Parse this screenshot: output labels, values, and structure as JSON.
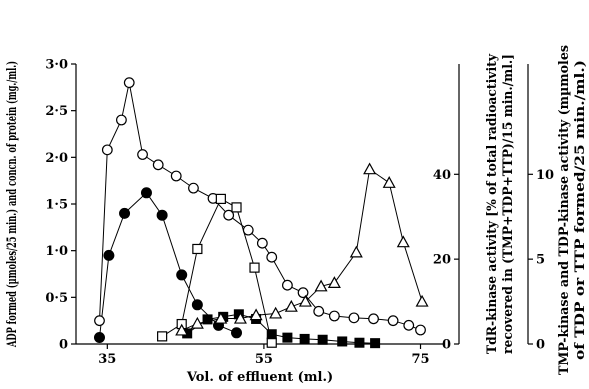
{
  "chart_data": {
    "type": "line",
    "xlabel": "Vol. of effluent (ml.)",
    "ylabel_left": "ADP formed (µmoles/25 min.) and concn. of protein (mg./ml.)",
    "ylabel_right_inner_line1": "TdR-kinase activity [% of total radioactivity",
    "ylabel_right_inner_line2": "recovered in (TMP+TDP+TTP)/15 min./ml.]",
    "ylabel_right_outer_line1": "TMP-kinase and TDP-kinase activity (mµmoles",
    "ylabel_right_outer_line2": "of TDP or TTP formed/25 min./ml.)",
    "x_ticks": [
      "35",
      "55",
      "75"
    ],
    "x_tick_values": [
      35,
      55,
      75
    ],
    "xlim": [
      31,
      78
    ],
    "y_left_ticks": [
      "0",
      "0·5",
      "1·0",
      "1·5",
      "2·0",
      "2·5",
      "3·0"
    ],
    "y_left_tick_values": [
      0,
      0.5,
      1.0,
      1.5,
      2.0,
      2.5,
      3.0
    ],
    "y_left_lim": [
      0,
      3.0
    ],
    "y_right_inner_ticks": [
      "0",
      "20",
      "40"
    ],
    "y_right_inner_tick_values": [
      0,
      20,
      40
    ],
    "y_right_inner_lim": [
      0,
      66
    ],
    "y_right_outer_ticks": [
      "0",
      "5",
      "10"
    ],
    "y_right_outer_tick_values": [
      0,
      5,
      10
    ],
    "y_right_outer_lim": [
      0,
      16.5
    ],
    "series": [
      {
        "marker": "open-circle",
        "axis": "left",
        "x": [
          34,
          35,
          36.8,
          37.8,
          39.5,
          41.5,
          43.8,
          46,
          48.5,
          50.5,
          53,
          54.8,
          56,
          58,
          60,
          62,
          64,
          66.5,
          69,
          71.5,
          73.5,
          75
        ],
        "y": [
          0.25,
          2.08,
          2.4,
          2.8,
          2.03,
          1.92,
          1.8,
          1.67,
          1.56,
          1.38,
          1.22,
          1.08,
          0.93,
          0.63,
          0.55,
          0.35,
          0.3,
          0.28,
          0.27,
          0.25,
          0.2,
          0.15
        ]
      },
      {
        "marker": "filled-circle",
        "axis": "left",
        "x": [
          34,
          35.2,
          37.2,
          40,
          42,
          44.5,
          46.5,
          49.2,
          51.5
        ],
        "y": [
          0.07,
          0.95,
          1.4,
          1.62,
          1.38,
          0.74,
          0.42,
          0.2,
          0.12
        ]
      },
      {
        "marker": "open-square",
        "axis": "right-inner",
        "x": [
          42,
          44.5,
          46.5,
          49.5,
          51.5,
          53.8,
          56
        ],
        "y": [
          1.8,
          4.7,
          22.4,
          34.2,
          32.2,
          18,
          0.3
        ]
      },
      {
        "marker": "filled-square",
        "axis": "right-inner",
        "x": [
          45.2,
          47.8,
          49.8,
          51.8,
          54,
          56,
          58,
          60.2,
          62.5,
          65,
          67.2,
          69.2
        ],
        "y": [
          2.5,
          5.8,
          6.4,
          7,
          5.9,
          2.3,
          1.5,
          1.2,
          1,
          0.6,
          0.3,
          0.2
        ]
      },
      {
        "marker": "open-triangle",
        "axis": "right-outer",
        "x": [
          44.5,
          46.5,
          49.5,
          52,
          54,
          56.5,
          58.5,
          60.3,
          62.3,
          64,
          66.8,
          68.5,
          71,
          72.8,
          75.2
        ],
        "y": [
          0.8,
          1.2,
          1.5,
          1.5,
          1.7,
          1.8,
          2.2,
          2.5,
          3.4,
          3.6,
          5.4,
          10.3,
          9.5,
          6,
          2.5
        ]
      }
    ]
  }
}
